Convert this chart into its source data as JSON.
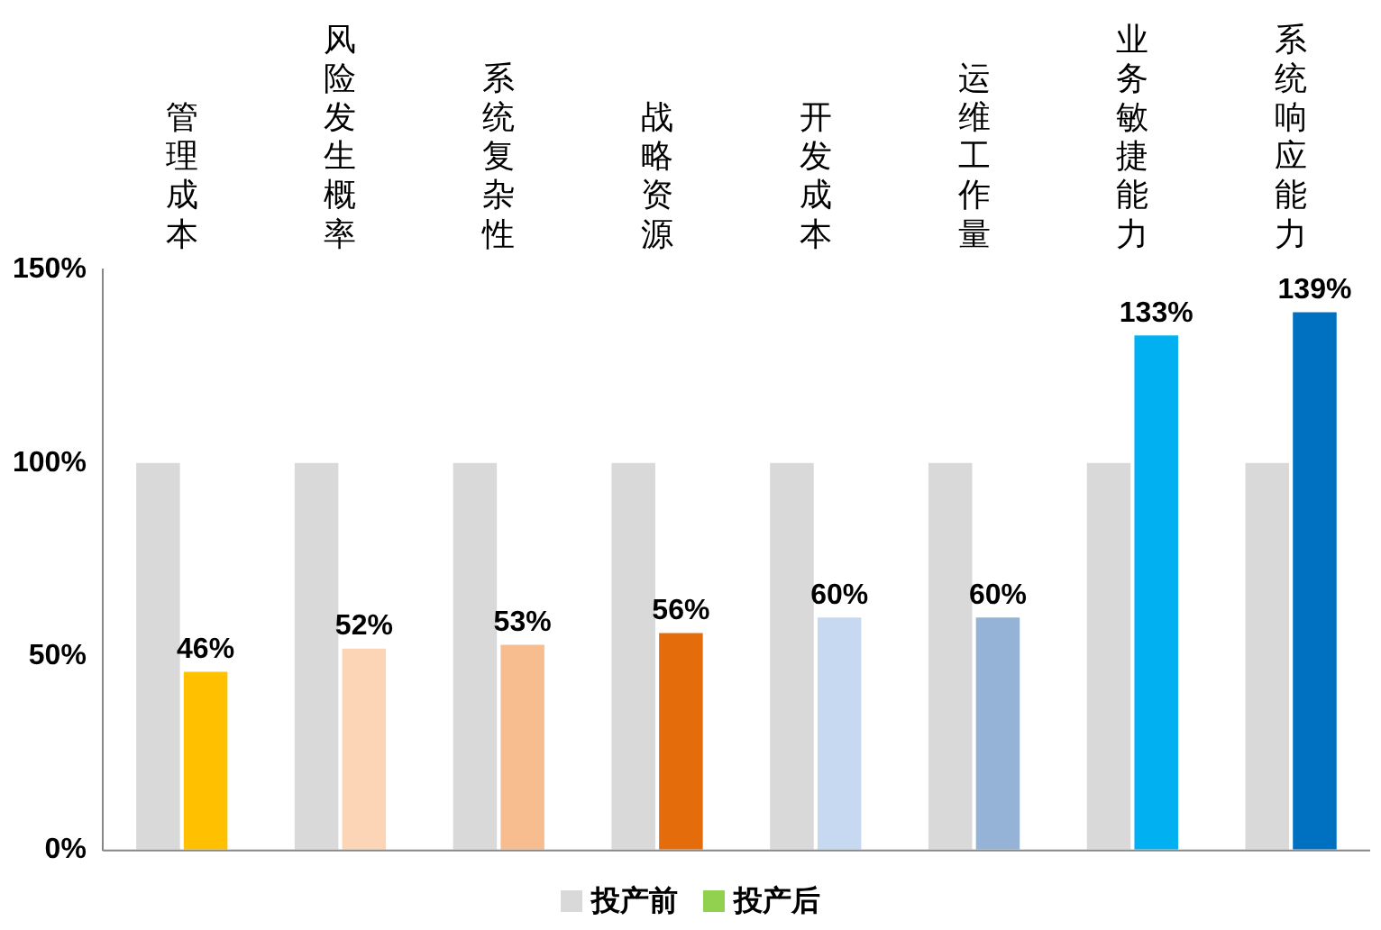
{
  "chart_data": {
    "type": "bar",
    "categories": [
      "管理成本",
      "风险发生概率",
      "系统复杂性",
      "战略资源",
      "开发成本",
      "运维工作量",
      "业务敏捷能力",
      "系统响应能力"
    ],
    "series": [
      {
        "name": "投产前",
        "color": "#d9d9d9",
        "values": [
          100,
          100,
          100,
          100,
          100,
          100,
          100,
          100
        ]
      },
      {
        "name": "投产后",
        "color": "#92d050",
        "colors": [
          "#ffc000",
          "#fbd5b5",
          "#f8bd8f",
          "#e46c0a",
          "#c6d9f1",
          "#95b3d7",
          "#00b0f0",
          "#0070c0"
        ],
        "values": [
          46,
          52,
          53,
          56,
          60,
          60,
          133,
          139
        ],
        "value_labels": [
          "46%",
          "52%",
          "53%",
          "56%",
          "60%",
          "60%",
          "133%",
          "139%"
        ]
      }
    ],
    "ylim": [
      0,
      150
    ],
    "yticks": [
      {
        "value": 0,
        "label": "0%"
      },
      {
        "value": 50,
        "label": "50%"
      },
      {
        "value": 100,
        "label": "100%"
      },
      {
        "value": 150,
        "label": "150%"
      }
    ],
    "grid": false,
    "legend": "bottom"
  }
}
